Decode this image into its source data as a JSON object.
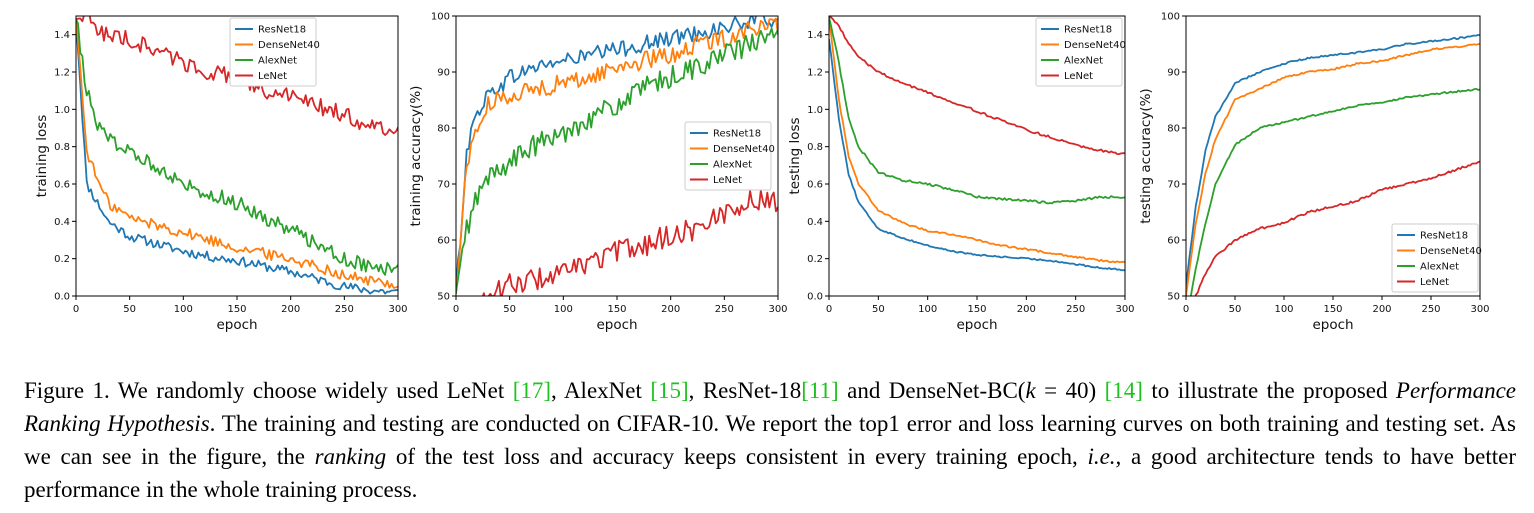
{
  "chart_data": [
    {
      "type": "line",
      "xlabel": "epoch",
      "ylabel": "training loss",
      "xlim": [
        0,
        300
      ],
      "ylim": [
        0.0,
        1.5
      ],
      "xticks": [
        0,
        50,
        100,
        150,
        200,
        250,
        300
      ],
      "yticks": [
        0.0,
        0.2,
        0.4,
        0.6,
        0.8,
        1.0,
        1.2,
        1.4
      ],
      "ytick_labels": [
        "0.0",
        "0.2",
        "0.4",
        "0.6",
        "0.8",
        "1.0",
        "1.2",
        "1.4"
      ],
      "legend": "top-right",
      "grid": false,
      "x": [
        0,
        10,
        20,
        30,
        50,
        75,
        100,
        125,
        150,
        175,
        200,
        225,
        250,
        275,
        300
      ],
      "series": [
        {
          "name": "ResNet18",
          "color": "#1f77b4",
          "noise": 0.025,
          "values": [
            1.5,
            0.6,
            0.5,
            0.4,
            0.32,
            0.28,
            0.24,
            0.21,
            0.19,
            0.16,
            0.13,
            0.09,
            0.05,
            0.03,
            0.02
          ]
        },
        {
          "name": "DenseNet40",
          "color": "#ff7f0e",
          "noise": 0.03,
          "values": [
            1.5,
            0.78,
            0.62,
            0.5,
            0.42,
            0.38,
            0.34,
            0.3,
            0.26,
            0.23,
            0.2,
            0.16,
            0.11,
            0.08,
            0.06
          ]
        },
        {
          "name": "AlexNet",
          "color": "#2ca02c",
          "noise": 0.04,
          "values": [
            1.5,
            1.1,
            0.9,
            0.86,
            0.76,
            0.7,
            0.6,
            0.55,
            0.5,
            0.42,
            0.36,
            0.28,
            0.2,
            0.16,
            0.13
          ]
        },
        {
          "name": "LeNet",
          "color": "#d62728",
          "noise": 0.045,
          "values": [
            1.5,
            1.5,
            1.43,
            1.4,
            1.37,
            1.32,
            1.25,
            1.2,
            1.17,
            1.1,
            1.07,
            1.02,
            0.97,
            0.91,
            0.9
          ]
        }
      ]
    },
    {
      "type": "line",
      "xlabel": "epoch",
      "ylabel": "training accuracy(%)",
      "xlim": [
        0,
        300
      ],
      "ylim": [
        50,
        100
      ],
      "xticks": [
        0,
        50,
        100,
        150,
        200,
        250,
        300
      ],
      "yticks": [
        50,
        60,
        70,
        80,
        90,
        100
      ],
      "ytick_labels": [
        "50",
        "60",
        "70",
        "80",
        "90",
        "100"
      ],
      "legend": "center-right",
      "grid": false,
      "x": [
        0,
        10,
        20,
        30,
        50,
        75,
        100,
        125,
        150,
        175,
        200,
        225,
        250,
        275,
        300
      ],
      "series": [
        {
          "name": "ResNet18",
          "color": "#1f77b4",
          "noise": 1.5,
          "values": [
            50,
            76,
            83,
            86,
            89,
            91,
            92,
            93,
            94,
            95,
            96,
            97,
            98,
            99,
            99.5
          ]
        },
        {
          "name": "DenseNet40",
          "color": "#ff7f0e",
          "noise": 1.6,
          "values": [
            50,
            74,
            80,
            84,
            86,
            87,
            88,
            89,
            91,
            92,
            93,
            95,
            96,
            98,
            98
          ]
        },
        {
          "name": "AlexNet",
          "color": "#2ca02c",
          "noise": 2.0,
          "values": [
            50,
            62,
            68,
            71,
            74,
            77,
            79,
            82,
            84,
            87,
            89,
            91,
            93,
            95,
            97
          ]
        },
        {
          "name": "LeNet",
          "color": "#d62728",
          "noise": 2.0,
          "values": [
            46,
            46,
            48,
            50,
            52,
            53,
            54,
            56,
            58,
            59,
            61,
            62,
            65,
            67,
            67
          ]
        }
      ]
    },
    {
      "type": "line",
      "xlabel": "epoch",
      "ylabel": "testing loss",
      "xlim": [
        0,
        300
      ],
      "ylim": [
        0.0,
        1.5
      ],
      "xticks": [
        0,
        50,
        100,
        150,
        200,
        250,
        300
      ],
      "yticks": [
        0.0,
        0.2,
        0.4,
        0.6,
        0.8,
        1.0,
        1.2,
        1.4
      ],
      "ytick_labels": [
        "0.0",
        "0.2",
        "0.4",
        "0.6",
        "0.8",
        "1.0",
        "1.2",
        "1.4"
      ],
      "legend": "top-right",
      "grid": false,
      "x": [
        0,
        10,
        20,
        30,
        50,
        75,
        100,
        125,
        150,
        175,
        200,
        225,
        250,
        275,
        300
      ],
      "series": [
        {
          "name": "ResNet18",
          "color": "#1f77b4",
          "noise": 0.004,
          "values": [
            1.38,
            0.95,
            0.65,
            0.5,
            0.36,
            0.31,
            0.27,
            0.24,
            0.22,
            0.21,
            0.2,
            0.19,
            0.17,
            0.15,
            0.14
          ]
        },
        {
          "name": "DenseNet40",
          "color": "#ff7f0e",
          "noise": 0.005,
          "values": [
            1.5,
            1.05,
            0.75,
            0.6,
            0.46,
            0.39,
            0.35,
            0.33,
            0.3,
            0.27,
            0.25,
            0.23,
            0.21,
            0.19,
            0.18
          ]
        },
        {
          "name": "AlexNet",
          "color": "#2ca02c",
          "noise": 0.006,
          "values": [
            1.5,
            1.25,
            0.95,
            0.8,
            0.66,
            0.62,
            0.6,
            0.57,
            0.53,
            0.52,
            0.51,
            0.5,
            0.51,
            0.53,
            0.53
          ]
        },
        {
          "name": "LeNet",
          "color": "#d62728",
          "noise": 0.006,
          "values": [
            1.5,
            1.45,
            1.35,
            1.28,
            1.2,
            1.14,
            1.09,
            1.04,
            0.99,
            0.94,
            0.89,
            0.85,
            0.81,
            0.78,
            0.76
          ]
        }
      ]
    },
    {
      "type": "line",
      "xlabel": "epoch",
      "ylabel": "testing accuracy(%)",
      "xlim": [
        0,
        300
      ],
      "ylim": [
        50,
        100
      ],
      "xticks": [
        0,
        50,
        100,
        150,
        200,
        250,
        300
      ],
      "yticks": [
        50,
        60,
        70,
        80,
        90,
        100
      ],
      "ytick_labels": [
        "50",
        "60",
        "70",
        "80",
        "90",
        "100"
      ],
      "legend": "bottom-right",
      "grid": false,
      "x": [
        0,
        10,
        20,
        30,
        50,
        75,
        100,
        125,
        150,
        175,
        200,
        225,
        250,
        275,
        300
      ],
      "series": [
        {
          "name": "ResNet18",
          "color": "#1f77b4",
          "noise": 0.15,
          "values": [
            52,
            66,
            76,
            82,
            88,
            90,
            91.5,
            92.5,
            93,
            93.5,
            94,
            95,
            95.5,
            96,
            96.5
          ]
        },
        {
          "name": "DenseNet40",
          "color": "#ff7f0e",
          "noise": 0.15,
          "values": [
            50,
            63,
            72,
            78,
            85,
            87,
            89,
            90,
            90.5,
            91.5,
            92,
            93,
            94,
            94.5,
            95
          ]
        },
        {
          "name": "AlexNet",
          "color": "#2ca02c",
          "noise": 0.15,
          "values": [
            45,
            55,
            63,
            70,
            77,
            80,
            81,
            82,
            83,
            84,
            84.5,
            85.5,
            86,
            86.5,
            87
          ]
        },
        {
          "name": "LeNet",
          "color": "#d62728",
          "noise": 0.2,
          "values": [
            44,
            50,
            54,
            57,
            60,
            62,
            63,
            65,
            66,
            67,
            69,
            70,
            71,
            72.5,
            74
          ]
        }
      ]
    }
  ],
  "caption": {
    "label": "Figure 1.",
    "t1": " We randomly choose widely used LeNet ",
    "c1": "[17]",
    "t2": ", AlexNet ",
    "c2": "[15]",
    "t3": ", ResNet-18",
    "c3": "[11]",
    "t4": " and DenseNet-BC(",
    "k": "k",
    "t5": " = 40) ",
    "c4": "[14]",
    "t6": " to illustrate the proposed ",
    "em1": "Performance Ranking Hypothesis",
    "t7": ". The training and testing are conducted on CIFAR-10. We report the top1 error and loss learning curves on both training and testing set. As we can see in the figure, the ",
    "em2": "ranking",
    "t8": " of the test loss and accuracy keeps consistent in every training epoch, ",
    "em3": "i.e.,",
    "t9": " a good architecture tends to have better performance in the whole training process."
  }
}
